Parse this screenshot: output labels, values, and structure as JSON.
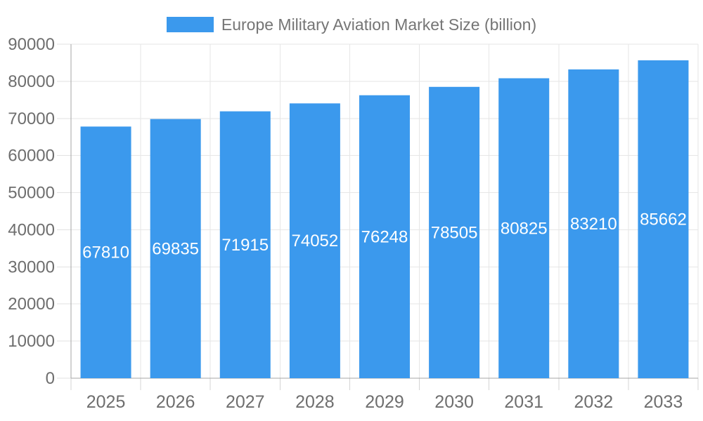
{
  "chart_data": {
    "type": "bar",
    "title": "Europe Military Aviation Market Size (billion)",
    "categories": [
      "2025",
      "2026",
      "2027",
      "2028",
      "2029",
      "2030",
      "2031",
      "2032",
      "2033"
    ],
    "series": [
      {
        "name": "Europe Military Aviation Market Size (billion)",
        "values": [
          67810,
          69835,
          71915,
          74052,
          76248,
          78505,
          80825,
          83210,
          85662
        ]
      }
    ],
    "bar_labels": [
      "67810",
      "69835",
      "71915",
      "74052",
      "76248",
      "78505",
      "80825",
      "83210",
      "85662"
    ],
    "xlabel": "",
    "ylabel": "",
    "ylim": [
      0,
      90000
    ],
    "yticks": [
      0,
      10000,
      20000,
      30000,
      40000,
      50000,
      60000,
      70000,
      80000,
      90000
    ],
    "grid": true,
    "legend_position": "top",
    "colors": {
      "bar": "#3b99ed",
      "grid": "#e6e6e6",
      "axis": "#a5a5a5",
      "y_tick": "#e2e2e2",
      "x_tick": "#d4d4d4",
      "tick_text": "#6e6e6e",
      "bar_label_text": "#ffffff",
      "legend_text": "#757575",
      "background": "#ffffff"
    }
  }
}
